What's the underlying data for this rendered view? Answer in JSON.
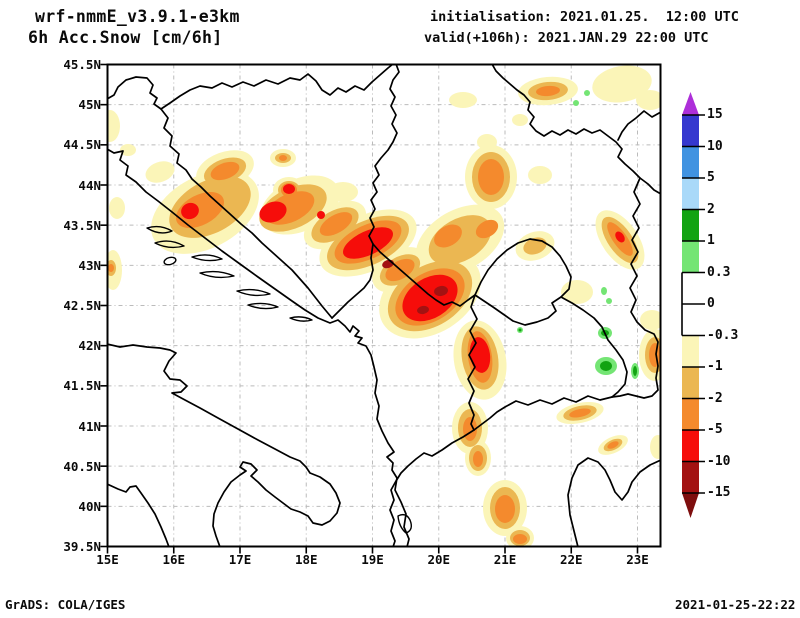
{
  "header": {
    "model": "wrf-nmmE_v3.9.1-e3km",
    "variable": "6h Acc.Snow [cm/6h]",
    "init_label": "initialisation: 2021.01.25.  12:00 UTC",
    "valid_label": "valid(+106h): 2021.JAN.29 22:00 UTC"
  },
  "footer": {
    "left": "GrADS: COLA/IGES",
    "right": "2021-01-25-22:22"
  },
  "map": {
    "lat_ticks": [
      "45.5N",
      "45N",
      "44.5N",
      "44N",
      "43.5N",
      "43N",
      "42.5N",
      "42N",
      "41.5N",
      "41N",
      "40.5N",
      "40N",
      "39.5N"
    ],
    "lon_ticks": [
      "15E",
      "16E",
      "17E",
      "18E",
      "19E",
      "20E",
      "21E",
      "22E",
      "23E"
    ]
  },
  "colorbar": {
    "tick_labels": [
      "15",
      "10",
      "5",
      "2",
      "1",
      "0.3",
      "0",
      "-0.3",
      "-1",
      "-2",
      "-5",
      "-10",
      "-15"
    ],
    "segment_colors_top_to_bottom": [
      "#3538CF",
      "#4193E1",
      "#A9D9F9",
      "#12A312",
      "#74E574",
      "#FFFFFF",
      "#FFFFFF",
      "#FBF5B8",
      "#EBB752",
      "#F48A2D",
      "#F60D0A",
      "#A31212"
    ],
    "over_color": "#AD2FD9",
    "under_color": "#7E0E0E"
  },
  "colors": {
    "cream": "#FBF5B8",
    "gold": "#EBB752",
    "orange": "#F48A2D",
    "red": "#F60D0A",
    "dark_red": "#A31212",
    "green": "#12A312",
    "light_green": "#74E574",
    "blue_dark": "#3538CF",
    "blue_mid": "#4193E1",
    "blue_light": "#A9D9F9",
    "purple": "#AD2FD9",
    "under_red": "#7E0E0E",
    "grid": "#BBBBBB",
    "outline": "#000000",
    "text": "#0A0A0A"
  },
  "chart_data": {
    "type": "filled-contour-map",
    "title": "6h Acc.Snow [cm/6h]",
    "lon_range_deg_e": [
      15,
      23.4
    ],
    "lat_range_deg_n": [
      39.5,
      45.5
    ],
    "contour_levels": [
      -15,
      -10,
      -5,
      -2,
      -1,
      -0.3,
      0,
      0.3,
      1,
      2,
      5,
      10,
      15
    ],
    "legend_position": "right",
    "grid": true,
    "shaded_maxima": [
      {
        "lon": 16.2,
        "lat": 43.7,
        "value_range": "-5 to -10"
      },
      {
        "lon": 17.5,
        "lat": 43.7,
        "value_range": "-5 to -10"
      },
      {
        "lon": 18.9,
        "lat": 43.3,
        "value_range": "-10 to -15"
      },
      {
        "lon": 19.9,
        "lat": 42.6,
        "value_range": "-10 to -15"
      },
      {
        "lon": 20.6,
        "lat": 41.9,
        "value_range": "-5 to -10"
      },
      {
        "lon": 22.3,
        "lat": 43.3,
        "value_range": "-5 to -10"
      },
      {
        "lon": 20.8,
        "lat": 44.1,
        "value_range": "-2 to -5"
      },
      {
        "lon": 22.0,
        "lat": 45.2,
        "value_range": "-2 to -5"
      },
      {
        "lon": 22.5,
        "lat": 41.75,
        "value_range": "+0.3 to +2"
      }
    ]
  }
}
